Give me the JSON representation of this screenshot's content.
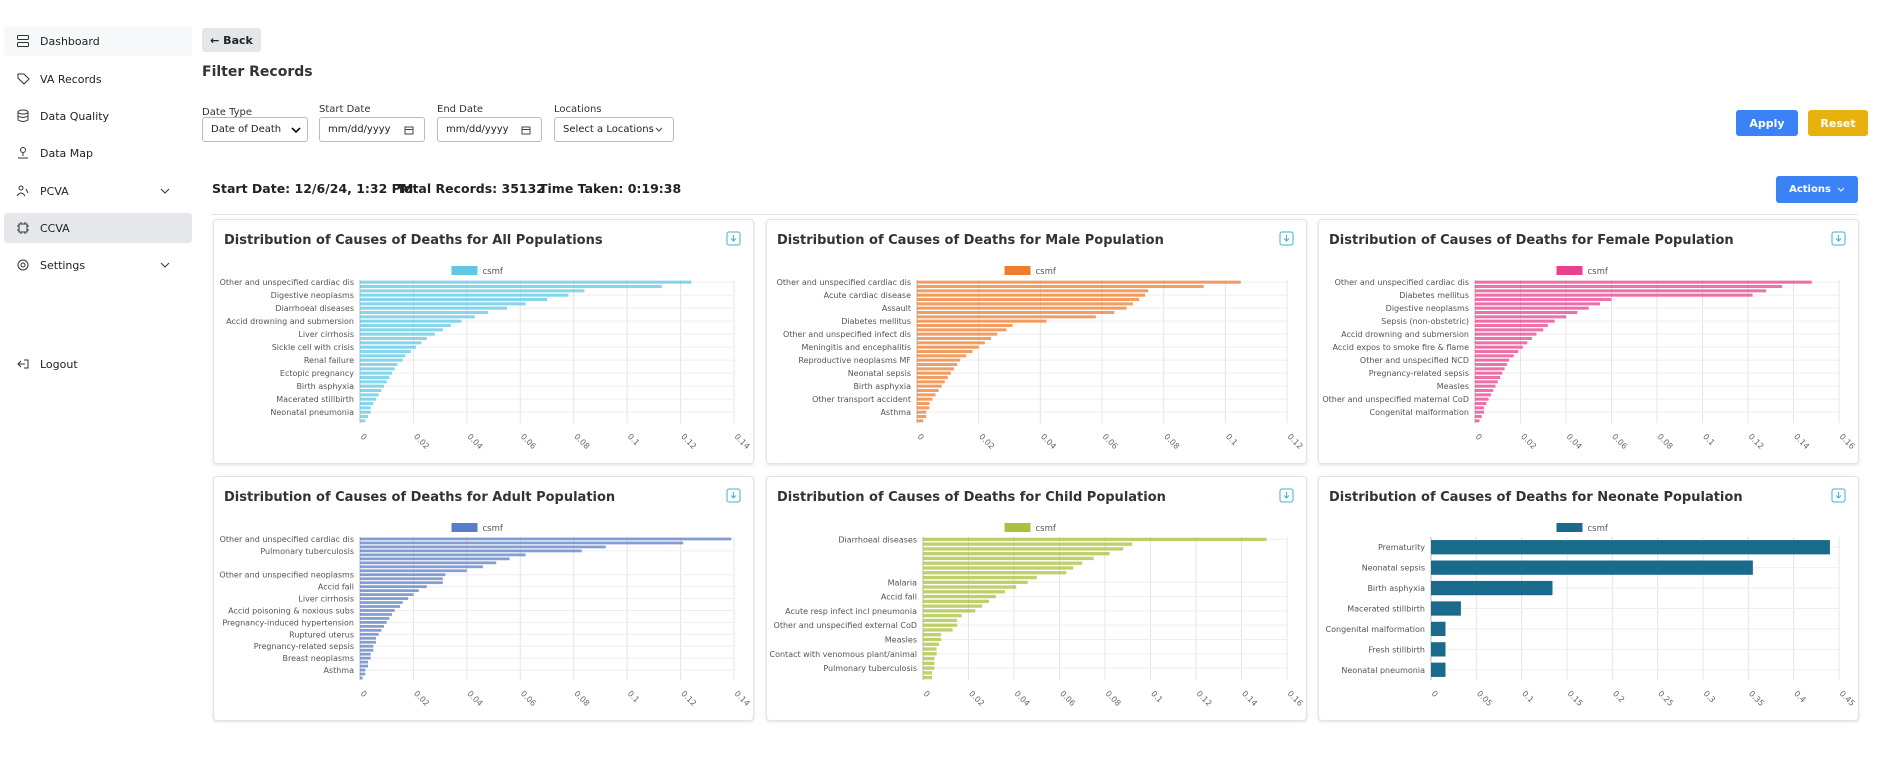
{
  "sidebar": {
    "items": [
      "Dashboard",
      "VA Records",
      "Data Quality",
      "Data Map",
      "PCVA",
      "CCVA",
      "Settings"
    ],
    "logout": "Logout"
  },
  "back": "← Back",
  "filter": {
    "title": "Filter Records",
    "date_type_label": "Date Type",
    "date_type_value": "Date of Death",
    "start_label": "Start Date",
    "start_placeholder": "mm/dd/yyyy",
    "end_label": "End Date",
    "end_placeholder": "mm/dd/yyyy",
    "locations_label": "Locations",
    "locations_placeholder": "Select a Locations",
    "apply": "Apply",
    "reset": "Reset"
  },
  "status": {
    "start": "Start Date: 12/6/24, 1:32 PM",
    "total": "Total Records: 35132",
    "time": "Time Taken: 0:19:38"
  },
  "actions": "Actions",
  "chart_data": [
    {
      "type": "bar",
      "orientation": "horizontal",
      "title": "Distribution of Causes of Deaths for All Populations",
      "categories": [
        "Other and unspecified cardiac dis",
        null,
        null,
        "Digestive neoplasms",
        null,
        null,
        "Diarrhoeal diseases",
        null,
        null,
        "Accid drowning and submersion",
        null,
        null,
        "Liver cirrhosis",
        null,
        null,
        "Sickle cell with crisis",
        null,
        null,
        "Renal failure",
        null,
        null,
        "Ectopic pregnancy",
        null,
        null,
        "Birth asphyxia",
        null,
        null,
        "Macerated stillbirth",
        null,
        null,
        "Neonatal pneumonia",
        null,
        null
      ],
      "series": [
        {
          "name": "csmf",
          "color": "#5ec8e5",
          "values": [
            0.124,
            0.113,
            0.084,
            0.078,
            0.07,
            0.062,
            0.055,
            0.048,
            0.043,
            0.038,
            0.034,
            0.031,
            0.028,
            0.025,
            0.023,
            0.021,
            0.019,
            0.017,
            0.016,
            0.014,
            0.013,
            0.012,
            0.011,
            0.01,
            0.009,
            0.008,
            0.007,
            0.006,
            0.005,
            0.004,
            0.004,
            0.003,
            0.002
          ]
        }
      ],
      "xlim": [
        0,
        0.14
      ],
      "xticks": [
        0,
        0.02,
        0.04,
        0.06,
        0.08,
        0.1,
        0.12,
        0.14
      ],
      "grid": true
    },
    {
      "type": "bar",
      "orientation": "horizontal",
      "title": "Distribution of Causes of Deaths for Male Population",
      "categories": [
        "Other and unspecified cardiac dis",
        null,
        null,
        "Acute cardiac disease",
        null,
        null,
        "Assault",
        null,
        null,
        "Diabetes mellitus",
        null,
        null,
        "Other and unspecified infect dis",
        null,
        null,
        "Meningitis and encephalitis",
        null,
        null,
        "Reproductive neoplasms MF",
        null,
        null,
        "Neonatal sepsis",
        null,
        null,
        "Birth asphyxia",
        null,
        null,
        "Other transport accident",
        null,
        null,
        "Asthma",
        null,
        null
      ],
      "series": [
        {
          "name": "csmf",
          "color": "#ee7d2f",
          "values": [
            0.105,
            0.093,
            0.075,
            0.074,
            0.072,
            0.07,
            0.068,
            0.064,
            0.058,
            0.042,
            0.031,
            0.029,
            0.026,
            0.024,
            0.022,
            0.02,
            0.018,
            0.016,
            0.014,
            0.013,
            0.012,
            0.011,
            0.01,
            0.009,
            0.008,
            0.007,
            0.006,
            0.005,
            0.004,
            0.004,
            0.003,
            0.003,
            0.002
          ]
        }
      ],
      "xlim": [
        0,
        0.12
      ],
      "xticks": [
        0,
        0.02,
        0.04,
        0.06,
        0.08,
        0.1,
        0.12
      ],
      "grid": true
    },
    {
      "type": "bar",
      "orientation": "horizontal",
      "title": "Distribution of Causes of Deaths for Female Population",
      "categories": [
        "Other and unspecified cardiac dis",
        null,
        null,
        "Diabetes mellitus",
        null,
        null,
        "Digestive neoplasms",
        null,
        null,
        "Sepsis (non-obstetric)",
        null,
        null,
        "Accid drowning and submersion",
        null,
        null,
        "Accid expos to smoke fire & flame",
        null,
        null,
        "Other and unspecified NCD",
        null,
        null,
        "Pregnancy-related sepsis",
        null,
        null,
        "Measles",
        null,
        null,
        "Other and unspecified maternal CoD",
        null,
        null,
        "Congenital malformation",
        null,
        null
      ],
      "series": [
        {
          "name": "csmf",
          "color": "#e8418d",
          "values": [
            0.148,
            0.135,
            0.128,
            0.122,
            0.06,
            0.055,
            0.05,
            0.045,
            0.04,
            0.035,
            0.032,
            0.03,
            0.027,
            0.025,
            0.023,
            0.021,
            0.019,
            0.017,
            0.015,
            0.014,
            0.013,
            0.012,
            0.011,
            0.01,
            0.009,
            0.008,
            0.007,
            0.006,
            0.005,
            0.004,
            0.004,
            0.003,
            0.002
          ]
        }
      ],
      "xlim": [
        0,
        0.16
      ],
      "xticks": [
        0,
        0.02,
        0.04,
        0.06,
        0.08,
        0.1,
        0.12,
        0.14,
        0.16
      ],
      "grid": true
    },
    {
      "type": "bar",
      "orientation": "horizontal",
      "title": "Distribution of Causes of Deaths for Adult Population",
      "categories": [
        "Other and unspecified cardiac dis",
        null,
        null,
        "Pulmonary tuberculosis",
        null,
        null,
        null,
        null,
        null,
        "Other and unspecified neoplasms",
        null,
        null,
        "Accid fall",
        null,
        null,
        "Liver cirrhosis",
        null,
        null,
        "Accid poisoning & noxious subs",
        null,
        null,
        "Pregnancy-induced hypertension",
        null,
        null,
        "Ruptured uterus",
        null,
        null,
        "Pregnancy-related sepsis",
        null,
        null,
        "Breast neoplasms",
        null,
        null,
        "Asthma",
        null,
        null
      ],
      "series": [
        {
          "name": "csmf",
          "color": "#5a7ec6",
          "values": [
            0.139,
            0.121,
            0.092,
            0.083,
            0.062,
            0.056,
            0.051,
            0.046,
            0.04,
            0.032,
            0.031,
            0.031,
            0.025,
            0.022,
            0.02,
            0.018,
            0.016,
            0.015,
            0.013,
            0.012,
            0.011,
            0.01,
            0.009,
            0.008,
            0.007,
            0.006,
            0.006,
            0.005,
            0.005,
            0.004,
            0.004,
            0.003,
            0.003,
            0.002,
            0.002,
            0.001
          ]
        }
      ],
      "xlim": [
        0,
        0.14
      ],
      "xticks": [
        0,
        0.02,
        0.04,
        0.06,
        0.08,
        0.1,
        0.12,
        0.14
      ],
      "grid": true
    },
    {
      "type": "bar",
      "orientation": "horizontal",
      "title": "Distribution of Causes of Deaths for Child Population",
      "categories": [
        "Diarrhoeal diseases",
        null,
        null,
        null,
        null,
        null,
        null,
        null,
        null,
        "Malaria",
        null,
        null,
        "Accid fall",
        null,
        null,
        "Acute resp infect incl pneumonia",
        null,
        null,
        "Other and unspecified external CoD",
        null,
        null,
        "Measles",
        null,
        null,
        "Contact with venomous plant/animal",
        null,
        null,
        "Pulmonary tuberculosis",
        null,
        null
      ],
      "series": [
        {
          "name": "csmf",
          "color": "#a9c13b",
          "values": [
            0.151,
            0.092,
            0.088,
            0.082,
            0.075,
            0.07,
            0.066,
            0.063,
            0.05,
            0.046,
            0.041,
            0.036,
            0.032,
            0.029,
            0.026,
            0.023,
            0.017,
            0.015,
            0.015,
            0.013,
            0.008,
            0.008,
            0.007,
            0.006,
            0.006,
            0.005,
            0.005,
            0.005,
            0.004,
            0.004
          ]
        }
      ],
      "xlim": [
        0,
        0.16
      ],
      "xticks": [
        0,
        0.02,
        0.04,
        0.06,
        0.08,
        0.1,
        0.12,
        0.14,
        0.16
      ],
      "grid": true
    },
    {
      "type": "bar",
      "orientation": "horizontal",
      "title": "Distribution of Causes of Deaths for Neonate Population",
      "categories": [
        "Prematurity",
        "Neonatal sepsis",
        "Birth asphyxia",
        "Macerated stillbirth",
        "Congenital malformation",
        "Fresh stillbirth",
        "Neonatal pneumonia"
      ],
      "series": [
        {
          "name": "csmf",
          "color": "#1a6a8b",
          "values": [
            0.44,
            0.355,
            0.134,
            0.033,
            0.016,
            0.016,
            0.016
          ]
        }
      ],
      "xlim": [
        0,
        0.45
      ],
      "xticks": [
        0,
        0.05,
        0.1,
        0.15,
        0.2,
        0.25,
        0.3,
        0.35,
        0.4,
        0.45
      ],
      "grid": true
    }
  ]
}
